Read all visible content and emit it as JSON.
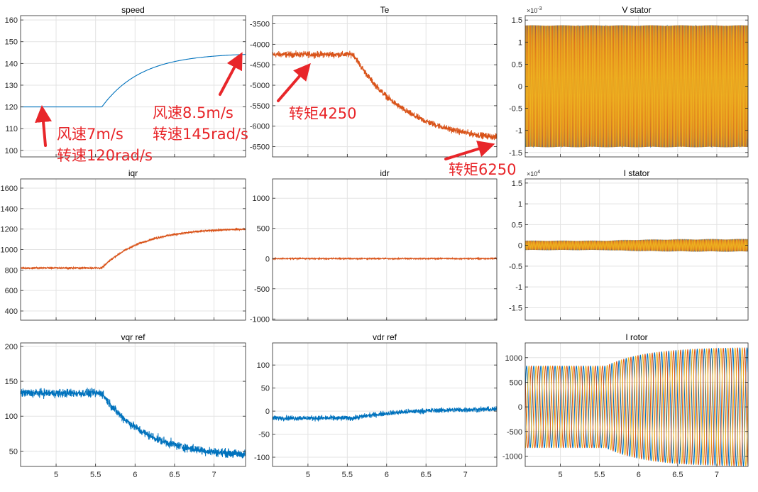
{
  "figure": {
    "background": "#ffffff",
    "axes_color": "#262626",
    "grid_color": "#e3e3e3",
    "series_colors": {
      "blue": "#0072bd",
      "orange": "#d95319",
      "yellow": "#edb120"
    }
  },
  "chart_data": [
    {
      "type": "line",
      "title": "speed",
      "xlabel": "",
      "ylabel": "",
      "xlim": [
        4.55,
        7.4
      ],
      "ylim": [
        97,
        162
      ],
      "xticks": [],
      "yticks": [
        100,
        110,
        120,
        130,
        140,
        150,
        160
      ],
      "grid": true,
      "signal": {
        "kind": "exp_step",
        "v0": 120,
        "v1": 144.8,
        "t0": 5.58,
        "tau": 0.5,
        "noise": 0,
        "color": "#0072bd"
      },
      "series": [
        {
          "x": [
            4.55,
            5.0,
            5.58,
            5.8,
            6.0,
            6.25,
            6.5,
            6.75,
            7.0,
            7.2,
            7.4
          ],
          "values": [
            120,
            120,
            120,
            130.3,
            133.4,
            136.9,
            139.5,
            141.4,
            142.8,
            143.6,
            144.2
          ]
        }
      ]
    },
    {
      "type": "line",
      "title": "Te",
      "xlabel": "",
      "ylabel": "",
      "xlim": [
        4.55,
        7.4
      ],
      "ylim": [
        -6750,
        -3300
      ],
      "xticks": [],
      "yticks": [
        -3500,
        -4000,
        -4500,
        -5000,
        -5500,
        -6000,
        -6500
      ],
      "grid": true,
      "signal": {
        "kind": "exp_step",
        "v0": -4250,
        "v1": -6400,
        "t0": 5.58,
        "tau": 0.65,
        "noise": 110,
        "color": "#d95319"
      },
      "series": [
        {
          "x": [
            4.55,
            5.0,
            5.58,
            6.0,
            6.5,
            7.0,
            7.4
          ],
          "values": [
            -4250,
            -4250,
            -4250,
            -5350,
            -5920,
            -6200,
            -6300
          ]
        }
      ]
    },
    {
      "type": "line",
      "title": "V stator",
      "exponent": "×10^{-3}",
      "xlabel": "",
      "ylabel": "",
      "xlim": [
        4.55,
        7.4
      ],
      "ylim": [
        -1.6,
        1.6
      ],
      "xticks": [],
      "yticks": [
        1.5,
        1,
        0.5,
        0,
        -0.5,
        -1,
        -1.5
      ],
      "ytick_labels": [
        "1.5",
        "1",
        "0.5",
        "0",
        "-0.5",
        "-1",
        "-1.5"
      ],
      "grid": true,
      "signal": {
        "kind": "sine",
        "amp": 1.38,
        "freq": 50,
        "phases": 3,
        "colors": [
          "#0072bd",
          "#d95319",
          "#edb120"
        ]
      },
      "series": [
        {
          "name": "",
          "amplitude": 1.38
        }
      ]
    },
    {
      "type": "line",
      "title": "iqr",
      "xlabel": "",
      "ylabel": "",
      "xlim": [
        4.55,
        7.4
      ],
      "ylim": [
        310,
        1690
      ],
      "xticks": [],
      "yticks": [
        400,
        600,
        800,
        1000,
        1200,
        1400,
        1600
      ],
      "grid": true,
      "signal": {
        "kind": "exp_step",
        "v0": 820,
        "v1": 1210,
        "t0": 5.58,
        "tau": 0.5,
        "noise": 14,
        "color": "#d95319"
      },
      "series": [
        {
          "x": [
            4.55,
            5.0,
            5.58,
            6.0,
            6.5,
            7.0,
            7.4
          ],
          "values": [
            820,
            820,
            820,
            1000,
            1110,
            1165,
            1190
          ]
        }
      ]
    },
    {
      "type": "line",
      "title": "idr",
      "xlabel": "",
      "ylabel": "",
      "xlim": [
        4.55,
        7.4
      ],
      "ylim": [
        -1020,
        1320
      ],
      "xticks": [],
      "yticks": [
        1000,
        500,
        0,
        -500,
        -1000
      ],
      "grid": true,
      "signal": {
        "kind": "exp_step",
        "v0": 0,
        "v1": 0,
        "t0": 5.58,
        "tau": 0.5,
        "noise": 14,
        "color": "#d95319"
      },
      "series": [
        {
          "x": [
            4.55,
            7.4
          ],
          "values": [
            0,
            0
          ]
        }
      ]
    },
    {
      "type": "line",
      "title": "I stator",
      "exponent": "×10^{4}",
      "xlabel": "",
      "ylabel": "",
      "xlim": [
        4.55,
        7.4
      ],
      "ylim": [
        -1.8,
        1.6
      ],
      "xticks": [],
      "yticks": [
        1.5,
        1,
        0.5,
        0,
        -0.5,
        -1,
        -1.5
      ],
      "ytick_labels": [
        "1.5",
        "1",
        "0.5",
        "0",
        "-0.5",
        "-1",
        "-1.5"
      ],
      "grid": true,
      "signal": {
        "kind": "sine_grow",
        "a0": 0.1,
        "a1": 0.135,
        "t0": 5.58,
        "tau": 0.5,
        "freq": 50,
        "phases": 3,
        "colors": [
          "#0072bd",
          "#d95319",
          "#edb120"
        ]
      },
      "series": [
        {
          "name": "",
          "amplitude_start": 0.1,
          "amplitude_end": 0.135
        }
      ]
    },
    {
      "type": "line",
      "title": "vqr ref",
      "xlabel": "",
      "ylabel": "",
      "xlim": [
        4.55,
        7.4
      ],
      "ylim": [
        28,
        205
      ],
      "xticks": [
        5,
        5.5,
        6,
        6.5,
        7
      ],
      "xtick_labels": [
        "5",
        "5.5",
        "6",
        "6.5",
        "7"
      ],
      "yticks": [
        50,
        100,
        150,
        200
      ],
      "grid": true,
      "signal": {
        "kind": "exp_step",
        "v0": 133,
        "v1": 42,
        "t0": 5.58,
        "tau": 0.55,
        "noise": 9,
        "color": "#0072bd"
      },
      "series": [
        {
          "x": [
            4.55,
            5.0,
            5.58,
            6.0,
            6.5,
            7.0,
            7.4
          ],
          "values": [
            133,
            133,
            133,
            90,
            68,
            55,
            48
          ]
        }
      ]
    },
    {
      "type": "line",
      "title": "vdr ref",
      "xlabel": "",
      "ylabel": "",
      "xlim": [
        4.55,
        7.4
      ],
      "ylim": [
        -120,
        148
      ],
      "xticks": [
        5,
        5.5,
        6,
        6.5,
        7
      ],
      "xtick_labels": [
        "5",
        "5.5",
        "6",
        "6.5",
        "7"
      ],
      "yticks": [
        100,
        50,
        0,
        -50,
        -100
      ],
      "grid": true,
      "signal": {
        "kind": "exp_step",
        "v0": -15,
        "v1": 5,
        "t0": 5.58,
        "tau": 0.6,
        "noise": 8,
        "color": "#0072bd"
      },
      "series": [
        {
          "x": [
            4.55,
            5.58,
            6.5,
            7.4
          ],
          "values": [
            -15,
            -15,
            -5,
            0
          ]
        }
      ]
    },
    {
      "type": "line",
      "title": "I rotor",
      "xlabel": "",
      "ylabel": "",
      "xlim": [
        4.55,
        7.4
      ],
      "ylim": [
        -1210,
        1300
      ],
      "xticks": [
        5,
        5.5,
        6,
        6.5,
        7
      ],
      "xtick_labels": [
        "5",
        "5.5",
        "6",
        "6.5",
        "7"
      ],
      "yticks": [
        1000,
        500,
        0,
        -500,
        -1000
      ],
      "grid": true,
      "signal": {
        "kind": "sine_grow",
        "a0": 830,
        "a1": 1210,
        "t0": 5.58,
        "tau": 0.5,
        "freq": 11,
        "phases": 3,
        "colors": [
          "#0072bd",
          "#d95319",
          "#edb120"
        ]
      },
      "series": [
        {
          "name": "",
          "amplitude_start": 830,
          "amplitude_end": 1210
        }
      ]
    }
  ],
  "annotations": [
    {
      "id": "wind7",
      "lines": [
        "风速7m/s",
        "转速120rad/s"
      ]
    },
    {
      "id": "wind85",
      "lines": [
        "风速8.5m/s",
        "转速145rad/s"
      ]
    },
    {
      "id": "torque4250",
      "lines": [
        "转矩4250"
      ]
    },
    {
      "id": "torque6250",
      "lines": [
        "转矩6250"
      ]
    }
  ],
  "annotation_color": "#e8262a"
}
